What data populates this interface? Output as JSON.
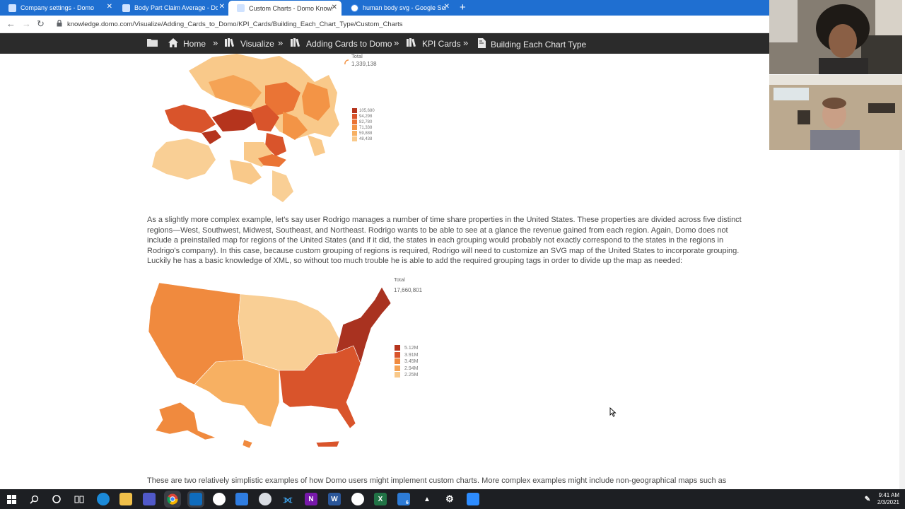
{
  "browser": {
    "tabs": [
      {
        "title": "Company settings - Domo",
        "active": false
      },
      {
        "title": "Body Part Claim Average - Domo",
        "active": false
      },
      {
        "title": "Custom Charts - Domo Knowledge",
        "active": true
      },
      {
        "title": "human body svg - Google Search",
        "active": false
      }
    ],
    "new_tab": "+",
    "close_glyph": "✕",
    "url": "knowledge.domo.com/Visualize/Adding_Cards_to_Domo/KPI_Cards/Building_Each_Chart_Type/Custom_Charts"
  },
  "breadcrumb": {
    "items": [
      {
        "label": "Home",
        "icon": "home-icon"
      },
      {
        "label": "Visualize",
        "icon": "books-icon"
      },
      {
        "label": "Adding Cards to Domo",
        "icon": "books-icon"
      },
      {
        "label": "KPI Cards",
        "icon": "books-icon"
      },
      {
        "label": "Building Each Chart Type",
        "icon": "page-icon"
      }
    ],
    "separator": "»"
  },
  "map1": {
    "total_label": "Total",
    "total_value": "1,339,138",
    "legend": [
      {
        "label": "105,680",
        "color": "#b5341d"
      },
      {
        "label": "94,298",
        "color": "#d9542b"
      },
      {
        "label": "82,780",
        "color": "#ea7435"
      },
      {
        "label": "71,338",
        "color": "#f39446"
      },
      {
        "label": "59,888",
        "color": "#f7b062"
      },
      {
        "label": "48,438",
        "color": "#f9c98a"
      }
    ]
  },
  "paragraph1": "As a slightly more complex example, let's say user Rodrigo manages a number of time share properties in the United States. These properties are divided across five distinct regions—West, Southwest, Midwest, Southeast, and Northeast. Rodrigo wants to be able to see at a glance the revenue gained from each region. Again, Domo does not include a preinstalled map for regions of the United States (and if it did, the states in each grouping would probably not exactly correspond to the states in the regions in Rodrigo's company). In this case, because custom grouping of regions is required, Rodrigo will need to customize an SVG map of the United States to incorporate grouping. Luckily he has a basic knowledge of XML, so without too much trouble he is able to add the required grouping tags in order to divide up the map as needed:",
  "map2": {
    "total_label": "Total",
    "total_value": "17,660,801",
    "legend": [
      {
        "label": "5.12M",
        "color": "#b5341d"
      },
      {
        "label": "3.91M",
        "color": "#d9542b"
      },
      {
        "label": "3.45M",
        "color": "#f08a3e"
      },
      {
        "label": "2.94M",
        "color": "#f5a355"
      },
      {
        "label": "2.25M",
        "color": "#f9c98a"
      }
    ],
    "region_colors": {
      "west": "#f08a3e",
      "southwest": "#f7b062",
      "midwest": "#f9cf95",
      "southeast": "#d9542b",
      "northeast": "#a93220"
    }
  },
  "paragraph2": "These are two relatively simplistic examples of how Domo users might implement custom charts. More complex examples might include non-geographical maps such as",
  "taskbar": {
    "time": "9:41 AM",
    "date": "2/3/2021",
    "badge": "6"
  }
}
